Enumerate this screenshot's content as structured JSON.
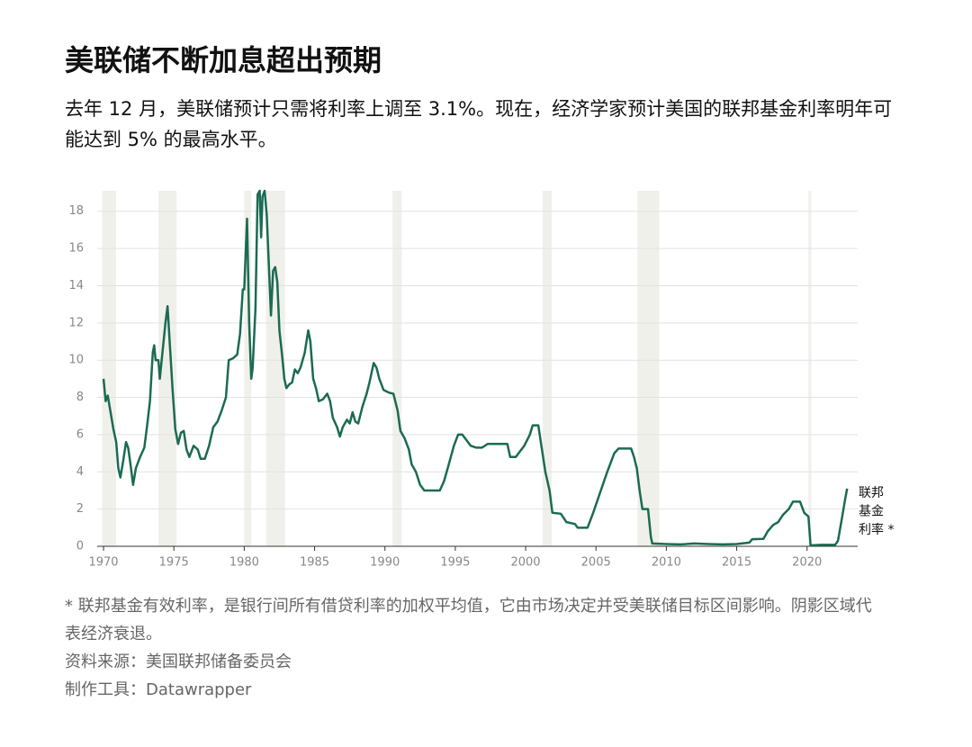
{
  "chart_data": {
    "type": "line",
    "title": "美联储不断加息超出预期",
    "subtitle": "去年 12 月，美联储预计只需将利率上调至 3.1%。现在，经济学家预计美国的联邦基金利率明年可能达到 5% 的最高水平。",
    "xlim": [
      1969.55,
      2023.6
    ],
    "ylim": [
      0,
      19.1
    ],
    "xticks": [
      1970,
      1975,
      1980,
      1985,
      1990,
      1995,
      2000,
      2005,
      2010,
      2015,
      2020
    ],
    "yticks": [
      0,
      2,
      4,
      6,
      8,
      10,
      12,
      14,
      16,
      18
    ],
    "grid": true,
    "recessions": [
      [
        1969.9,
        1970.9
      ],
      [
        1973.9,
        1975.2
      ],
      [
        1980.0,
        1980.5
      ],
      [
        1981.55,
        1982.9
      ],
      [
        1990.55,
        1991.2
      ],
      [
        2001.2,
        2001.85
      ],
      [
        2007.95,
        2009.5
      ],
      [
        2020.1,
        2020.3
      ]
    ],
    "recession_color": "#f0f0eb",
    "x": [
      1970.0,
      1970.15,
      1970.3,
      1970.5,
      1970.7,
      1970.9,
      1971.05,
      1971.2,
      1971.4,
      1971.6,
      1971.75,
      1971.9,
      1972.1,
      1972.3,
      1972.6,
      1972.9,
      1973.1,
      1973.3,
      1973.5,
      1973.6,
      1973.7,
      1973.9,
      1974.0,
      1974.2,
      1974.4,
      1974.55,
      1974.7,
      1974.9,
      1975.1,
      1975.3,
      1975.5,
      1975.7,
      1975.9,
      1976.1,
      1976.4,
      1976.7,
      1976.9,
      1977.2,
      1977.5,
      1977.8,
      1978.1,
      1978.4,
      1978.7,
      1978.9,
      1979.2,
      1979.5,
      1979.7,
      1979.9,
      1980.0,
      1980.2,
      1980.35,
      1980.5,
      1980.6,
      1980.8,
      1980.95,
      1981.1,
      1981.2,
      1981.3,
      1981.45,
      1981.6,
      1981.75,
      1981.9,
      1982.05,
      1982.2,
      1982.35,
      1982.5,
      1982.7,
      1982.85,
      1983.0,
      1983.2,
      1983.4,
      1983.6,
      1983.8,
      1984.0,
      1984.3,
      1984.55,
      1984.7,
      1984.9,
      1985.1,
      1985.3,
      1985.6,
      1985.9,
      1986.1,
      1986.3,
      1986.6,
      1986.8,
      1987.0,
      1987.3,
      1987.5,
      1987.7,
      1987.9,
      1988.1,
      1988.4,
      1988.7,
      1988.9,
      1989.2,
      1989.4,
      1989.6,
      1989.9,
      1990.3,
      1990.6,
      1990.9,
      1991.1,
      1991.4,
      1991.7,
      1991.9,
      1992.2,
      1992.5,
      1992.8,
      1993.1,
      1993.5,
      1993.9,
      1994.2,
      1994.5,
      1994.9,
      1995.2,
      1995.5,
      1995.8,
      1996.1,
      1996.5,
      1996.9,
      1997.3,
      1997.8,
      1998.3,
      1998.7,
      1998.9,
      1999.3,
      1999.6,
      1999.9,
      2000.3,
      2000.5,
      2000.9,
      2001.1,
      2001.4,
      2001.7,
      2001.9,
      2002.5,
      2002.9,
      2003.5,
      2003.7,
      2004.4,
      2004.8,
      2005.3,
      2005.8,
      2006.3,
      2006.6,
      2007.5,
      2007.7,
      2007.9,
      2008.1,
      2008.3,
      2008.7,
      2008.9,
      2009.0,
      2010.0,
      2011.0,
      2012.0,
      2013.0,
      2014.0,
      2015.0,
      2015.9,
      2016.1,
      2016.9,
      2017.2,
      2017.6,
      2017.95,
      2018.3,
      2018.7,
      2019.0,
      2019.5,
      2019.8,
      2020.1,
      2020.25,
      2021.0,
      2022.0,
      2022.2,
      2022.5,
      2022.7,
      2022.85
    ],
    "series": [
      {
        "name_lines": [
          "联邦",
          "基金",
          "利率 *"
        ],
        "color": "#1b6b52",
        "values": [
          9.0,
          7.8,
          8.1,
          7.2,
          6.3,
          5.6,
          4.2,
          3.7,
          4.6,
          5.6,
          5.3,
          4.5,
          3.3,
          4.2,
          4.8,
          5.3,
          6.5,
          7.8,
          10.4,
          10.8,
          10.0,
          10.0,
          9.0,
          10.5,
          12.0,
          12.9,
          11.0,
          8.5,
          6.3,
          5.5,
          6.1,
          6.2,
          5.2,
          4.8,
          5.4,
          5.2,
          4.7,
          4.7,
          5.4,
          6.4,
          6.7,
          7.3,
          8.0,
          10.0,
          10.1,
          10.3,
          11.4,
          13.8,
          13.8,
          17.6,
          12.0,
          9.0,
          9.6,
          12.8,
          18.9,
          19.1,
          16.6,
          18.8,
          19.1,
          17.8,
          15.1,
          12.4,
          14.8,
          15.0,
          14.2,
          11.6,
          10.2,
          9.0,
          8.5,
          8.7,
          8.8,
          9.5,
          9.3,
          9.6,
          10.4,
          11.6,
          11.0,
          9.0,
          8.5,
          7.8,
          7.9,
          8.2,
          7.8,
          6.9,
          6.4,
          5.9,
          6.4,
          6.8,
          6.6,
          7.2,
          6.7,
          6.6,
          7.5,
          8.2,
          8.8,
          9.85,
          9.6,
          9.0,
          8.4,
          8.25,
          8.2,
          7.3,
          6.2,
          5.8,
          5.2,
          4.4,
          4.0,
          3.3,
          3.0,
          3.0,
          3.0,
          3.0,
          3.5,
          4.3,
          5.4,
          6.0,
          6.0,
          5.7,
          5.4,
          5.3,
          5.3,
          5.5,
          5.5,
          5.5,
          5.5,
          4.8,
          4.8,
          5.1,
          5.4,
          6.0,
          6.5,
          6.5,
          5.5,
          4.0,
          3.0,
          1.8,
          1.75,
          1.3,
          1.2,
          1.0,
          1.0,
          1.8,
          2.9,
          4.0,
          5.0,
          5.25,
          5.25,
          4.8,
          4.2,
          3.0,
          2.0,
          2.0,
          0.5,
          0.15,
          0.12,
          0.1,
          0.15,
          0.12,
          0.1,
          0.12,
          0.2,
          0.38,
          0.4,
          0.8,
          1.15,
          1.3,
          1.7,
          2.0,
          2.4,
          2.4,
          1.8,
          1.6,
          0.05,
          0.08,
          0.08,
          0.3,
          1.6,
          2.5,
          3.1
        ]
      }
    ],
    "notes": [
      "* 联邦基金有效利率，是银行间所有借贷利率的加权平均值，它由市场决定并受美联储目标区间影响。阴影区域代表经济衰退。",
      "资料来源：美国联邦储备委员会",
      "制作工具：Datawrapper"
    ]
  }
}
